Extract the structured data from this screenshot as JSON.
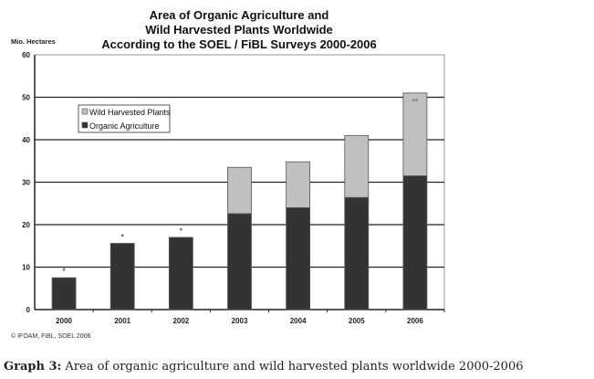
{
  "chart_data": {
    "type": "bar",
    "stacked": true,
    "title": [
      "Area of Organic Agriculture and",
      "Wild Harvested Plants Worldwide",
      "According to the SOEL / FiBL Surveys 2000-2006"
    ],
    "ylabel": "Mio. Hectares",
    "ylim": [
      0,
      60
    ],
    "yticks": [
      0,
      10,
      20,
      30,
      40,
      50,
      60
    ],
    "categories": [
      "2000",
      "2001",
      "2002",
      "2003",
      "2004",
      "2005",
      "2006"
    ],
    "series": [
      {
        "name": "Organic Agriculture",
        "color": "#333333",
        "values": [
          7.5,
          15.6,
          17.0,
          22.6,
          24.0,
          26.4,
          31.5
        ]
      },
      {
        "name": "Wild Harvested Plants",
        "color": "#c0c0c0",
        "values": [
          0,
          0,
          0,
          10.9,
          10.8,
          14.6,
          19.5
        ]
      }
    ],
    "annotations": [
      "*",
      "*",
      "*",
      "",
      "",
      "",
      "**"
    ],
    "legend_items": [
      "Wild Harvested Plants",
      "Organic Agriculture"
    ],
    "legend_placement": "top-left",
    "grid": true,
    "source": "© IFOAM, FiBL, SOEL 2006"
  },
  "caption": {
    "label": "Graph 3:",
    "text": " Area of organic agriculture and wild harvested plants worldwide 2000-2006"
  }
}
